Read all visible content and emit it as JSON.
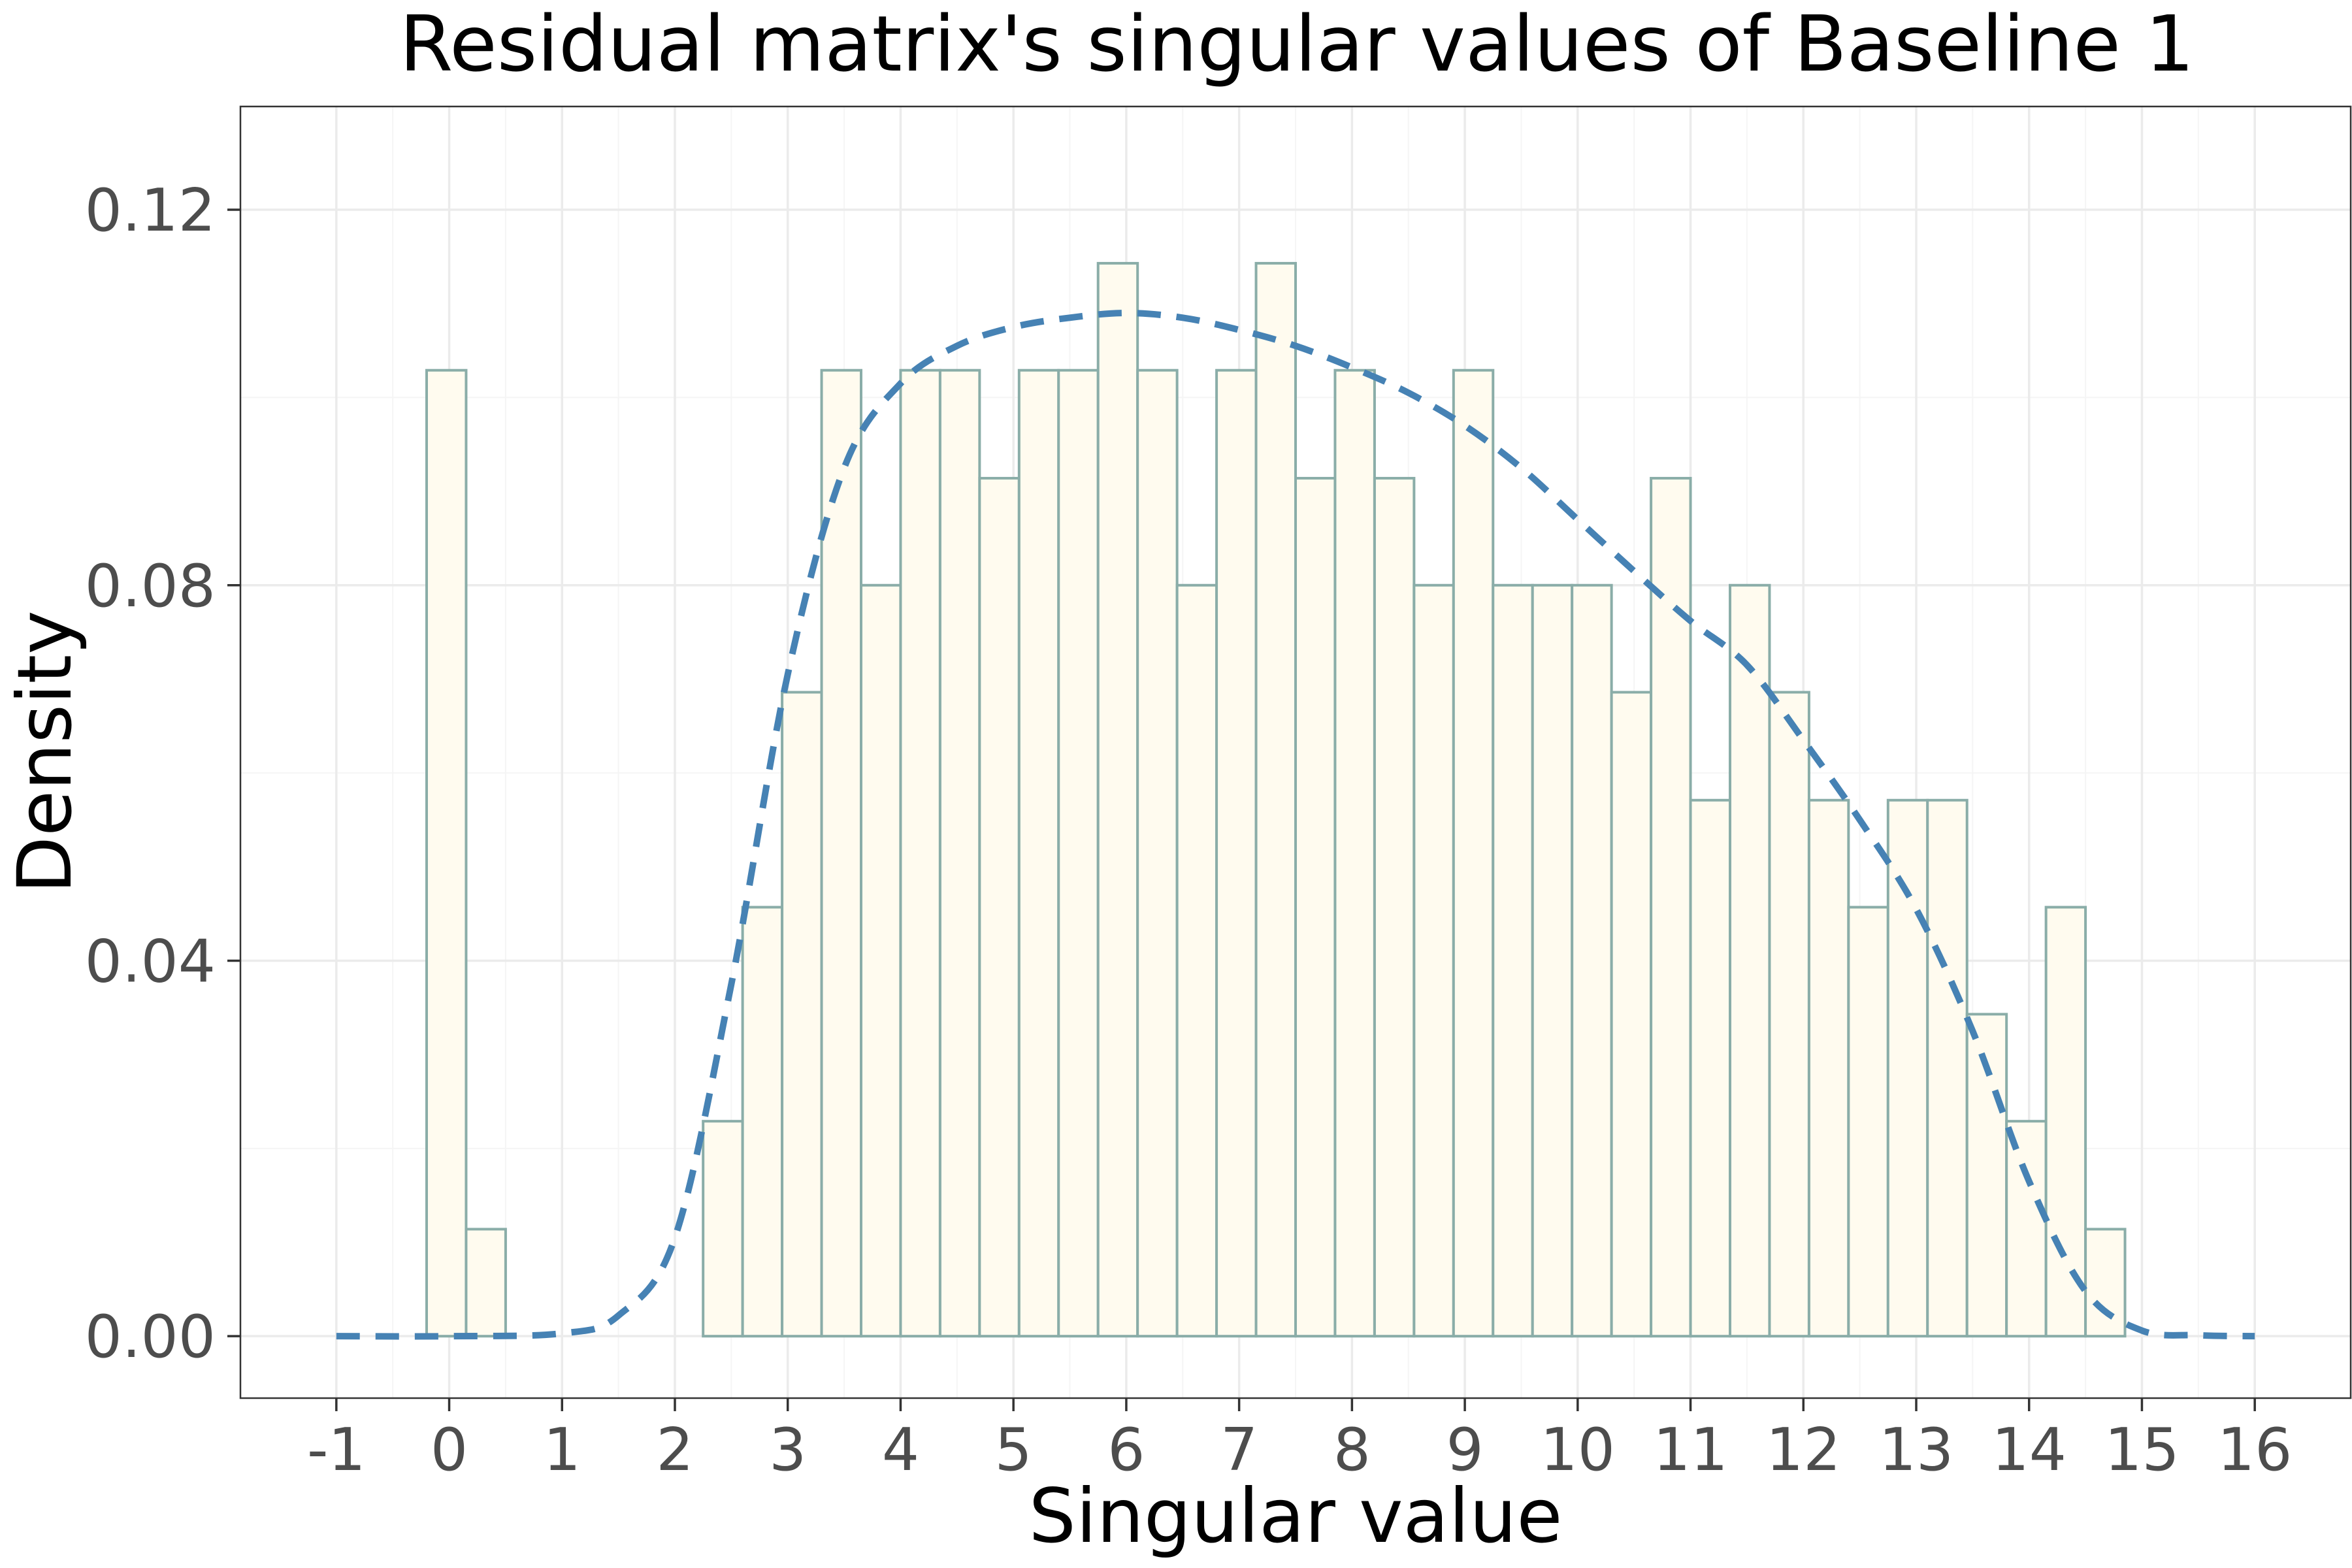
{
  "chart_data": {
    "type": "bar",
    "title": "Residual matrix's singular values of Baseline 1",
    "xlabel": "Singular value",
    "ylabel": "Density",
    "xlim": [
      -1.85,
      16.85
    ],
    "ylim": [
      -0.0066,
      0.131
    ],
    "x_ticks": [
      -1,
      0,
      1,
      2,
      3,
      4,
      5,
      6,
      7,
      8,
      9,
      10,
      11,
      12,
      13,
      14,
      15,
      16
    ],
    "x_tick_labels": [
      "-1",
      "0",
      "1",
      "2",
      "3",
      "4",
      "5",
      "6",
      "7",
      "8",
      "9",
      "10",
      "11",
      "12",
      "13",
      "14",
      "15",
      "16"
    ],
    "y_ticks": [
      0,
      0.04,
      0.08,
      0.12
    ],
    "y_tick_labels": [
      "0.00",
      "0.04",
      "0.08",
      "0.12"
    ],
    "grid": true,
    "bin_width": 0.35,
    "bins_start": -0.2,
    "histogram_density": [
      0.1029,
      0.0114,
      0,
      0,
      0,
      0,
      0,
      0.0229,
      0.0457,
      0.0686,
      0.1029,
      0.08,
      0.1029,
      0.1029,
      0.0914,
      0.1029,
      0.1029,
      0.1143,
      0.1029,
      0.08,
      0.1029,
      0.1143,
      0.0914,
      0.1029,
      0.0914,
      0.08,
      0.1029,
      0.08,
      0.08,
      0.08,
      0.0686,
      0.0914,
      0.0571,
      0.08,
      0.0686,
      0.0571,
      0.0457,
      0.0571,
      0.0571,
      0.0343,
      0.0229,
      0.0457,
      0.0114
    ],
    "density_curve": {
      "style": "dashed",
      "x": [
        -1,
        0,
        1,
        1.5,
        2,
        2.5,
        3,
        3.5,
        4,
        4.5,
        5,
        5.5,
        6,
        6.5,
        7,
        7.5,
        8,
        8.5,
        9,
        9.5,
        10,
        10.5,
        11,
        11.5,
        12,
        12.5,
        13,
        13.5,
        14,
        14.5,
        15,
        15.5,
        16
      ],
      "y": [
        0,
        0,
        0.0003,
        0.0022,
        0.0105,
        0.0375,
        0.0705,
        0.0925,
        0.1015,
        0.1055,
        0.1075,
        0.1085,
        0.109,
        0.1085,
        0.1072,
        0.1055,
        0.1032,
        0.1005,
        0.097,
        0.0925,
        0.087,
        0.0815,
        0.0762,
        0.0715,
        0.0635,
        0.055,
        0.0455,
        0.0325,
        0.0165,
        0.0048,
        0.0006,
        0.0001,
        0
      ]
    },
    "colors": {
      "bar_fill": "#fffbef",
      "bar_stroke": "#8aada8",
      "curve": "#4682b4",
      "grid_major": "#ebebeb",
      "grid_minor": "#f5f5f5",
      "panel_border": "#333333",
      "tick_text": "#4d4d4d"
    }
  }
}
